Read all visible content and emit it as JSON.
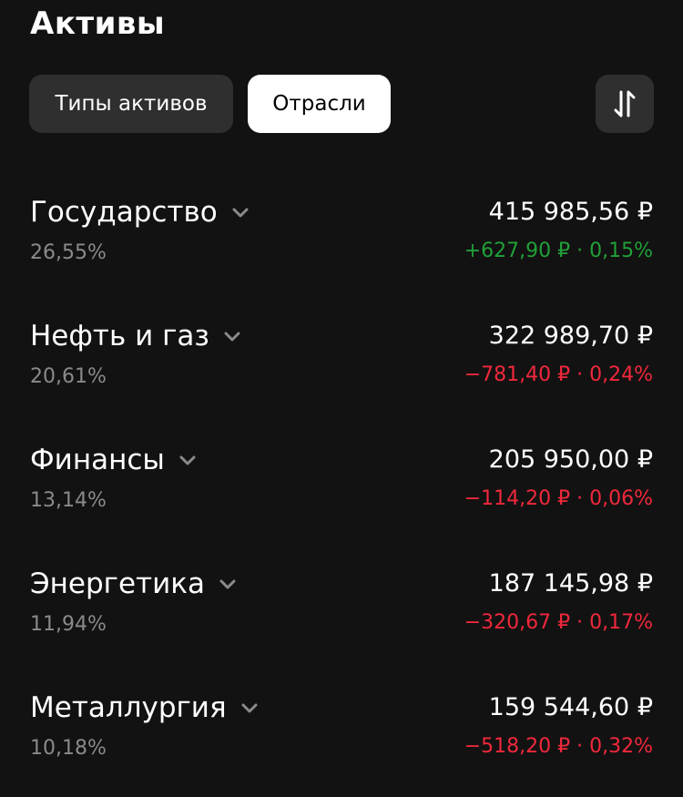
{
  "header": {
    "title": "Активы"
  },
  "tabs": [
    {
      "label": "Типы активов",
      "active": false
    },
    {
      "label": "Отрасли",
      "active": true
    }
  ],
  "sort_button": {
    "icon": "sort-arrows-icon"
  },
  "colors": {
    "background": "#121212",
    "positive": "#21a038",
    "negative": "#f0283c",
    "muted": "#8a8a8a"
  },
  "sectors": [
    {
      "name": "Государство",
      "share": "26,55%",
      "amount": "415 985,56 ₽",
      "change": "+627,90 ₽ · 0,15%",
      "trend": "up"
    },
    {
      "name": "Нефть и газ",
      "share": "20,61%",
      "amount": "322 989,70 ₽",
      "change": "−781,40 ₽ · 0,24%",
      "trend": "down"
    },
    {
      "name": "Финансы",
      "share": "13,14%",
      "amount": "205 950,00 ₽",
      "change": "−114,20 ₽ · 0,06%",
      "trend": "down"
    },
    {
      "name": "Энергетика",
      "share": "11,94%",
      "amount": "187 145,98 ₽",
      "change": "−320,67 ₽ · 0,17%",
      "trend": "down"
    },
    {
      "name": "Металлургия",
      "share": "10,18%",
      "amount": "159 544,60 ₽",
      "change": "−518,20 ₽ · 0,32%",
      "trend": "down"
    }
  ]
}
